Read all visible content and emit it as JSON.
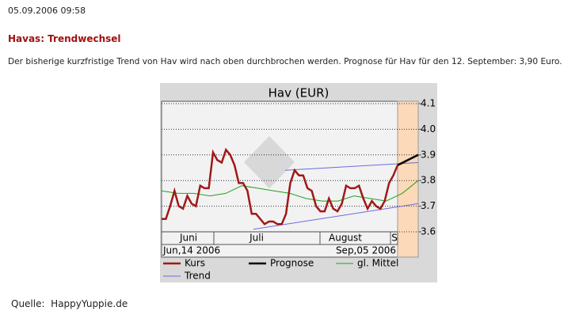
{
  "header": {
    "timestamp": "05.09.2006 09:58"
  },
  "article": {
    "title": "Havas: Trendwechsel",
    "text": "Der bisherige kurzfristige Trend von Hav wird nach oben durchbrochen werden. Prognose für Hav für den 12. September: 3,90 Euro."
  },
  "chart_data": {
    "type": "line",
    "title": "Hav  (EUR)",
    "ylim": [
      3.6,
      4.1
    ],
    "yticks": [
      3.6,
      3.7,
      3.8,
      3.9,
      {
        "value": 4,
        "label": "4.0"
      },
      4.1
    ],
    "grid": true,
    "months": [
      "Juni",
      "Juli",
      "August",
      "S"
    ],
    "date_start": "Jun,14 2006",
    "date_end": "Sep,05 2006",
    "series": [
      {
        "name": "Kurs",
        "color": "#a01818",
        "values": [
          3.65,
          3.65,
          3.7,
          3.76,
          3.7,
          3.69,
          3.74,
          3.71,
          3.7,
          3.78,
          3.77,
          3.77,
          3.91,
          3.88,
          3.87,
          3.92,
          3.9,
          3.86,
          3.79,
          3.79,
          3.76,
          3.67,
          3.67,
          3.65,
          3.63,
          3.64,
          3.64,
          3.63,
          3.63,
          3.67,
          3.79,
          3.84,
          3.82,
          3.82,
          3.77,
          3.76,
          3.7,
          3.68,
          3.68,
          3.73,
          3.69,
          3.68,
          3.71,
          3.78,
          3.77,
          3.77,
          3.78,
          3.73,
          3.69,
          3.72,
          3.7,
          3.69,
          3.72,
          3.79,
          3.82,
          3.86
        ]
      },
      {
        "name": "Prognose",
        "color": "#000000",
        "values": [
          3.86,
          3.88,
          3.9
        ]
      },
      {
        "name": "gl. Mittel",
        "color": "#22a022",
        "values": [
          3.76,
          3.75,
          3.75,
          3.74,
          3.75,
          3.78,
          3.77,
          3.76,
          3.75,
          3.73,
          3.72,
          3.72,
          3.74,
          3.73,
          3.72,
          3.75,
          3.8
        ]
      },
      {
        "name": "Trend",
        "color": "#6a6ae0",
        "values": [
          [
            3.84,
            3.87
          ],
          [
            3.61,
            3.71
          ]
        ]
      }
    ]
  },
  "source": {
    "label": "Quelle:",
    "value": "HappyYuppie.de"
  }
}
